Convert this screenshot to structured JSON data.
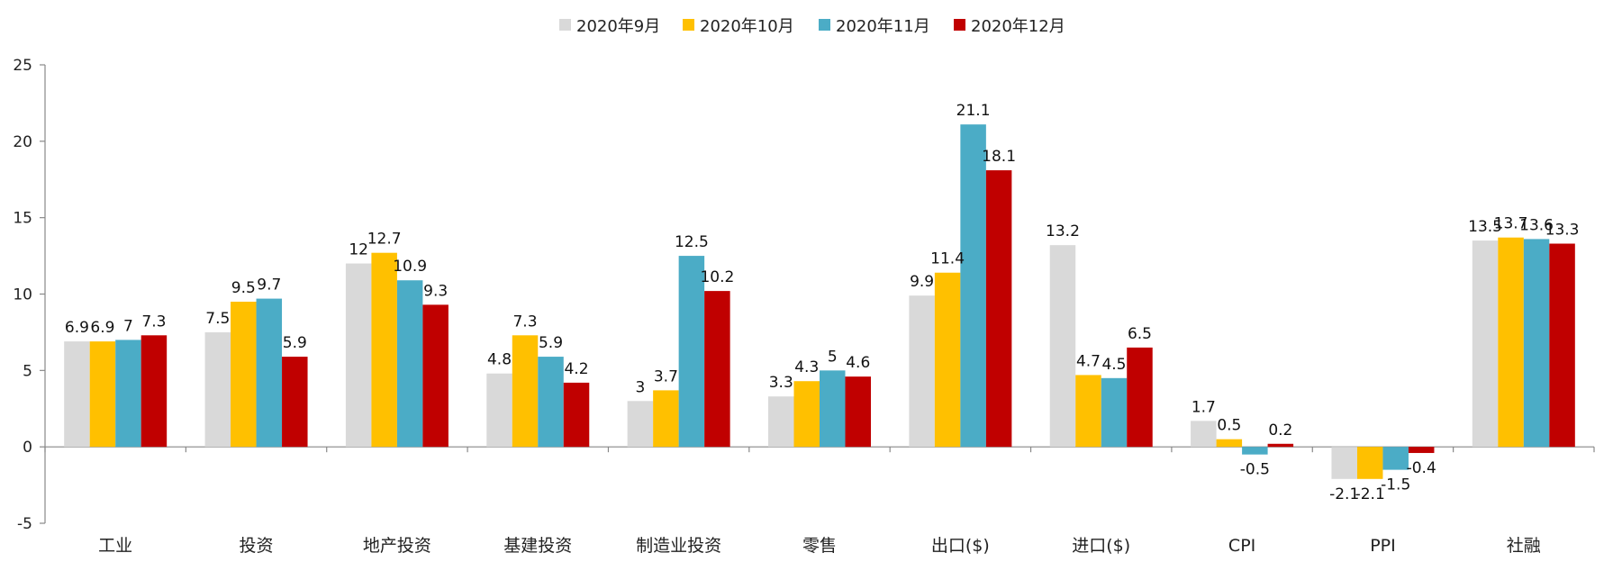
{
  "chart_data": {
    "type": "bar",
    "categories": [
      "工业",
      "投资",
      "地产投资",
      "基建投资",
      "制造业投资",
      "零售",
      "出口($)",
      "进口($)",
      "CPI",
      "PPI",
      "社融"
    ],
    "series": [
      {
        "name": "2020年9月",
        "color": "#d9d9d9",
        "values": [
          6.9,
          7.5,
          12,
          4.8,
          3,
          3.3,
          9.9,
          13.2,
          1.7,
          -2.1,
          13.5
        ]
      },
      {
        "name": "2020年10月",
        "color": "#ffc000",
        "values": [
          6.9,
          9.5,
          12.7,
          7.3,
          3.7,
          4.3,
          11.4,
          4.7,
          0.5,
          -2.1,
          13.7
        ]
      },
      {
        "name": "2020年11月",
        "color": "#4bacc6",
        "values": [
          7,
          9.7,
          10.9,
          5.9,
          12.5,
          5,
          21.1,
          4.5,
          -0.5,
          -1.5,
          13.6
        ]
      },
      {
        "name": "2020年12月",
        "color": "#c00000",
        "values": [
          7.3,
          5.9,
          9.3,
          4.2,
          10.2,
          4.6,
          18.1,
          6.5,
          0.2,
          -0.4,
          13.3
        ]
      }
    ],
    "y_ticks": [
      "25",
      "20",
      "15",
      "10",
      "5",
      "0",
      "-5"
    ],
    "ylim": [
      -5,
      25
    ],
    "grid": false,
    "legend_position": "top-center"
  }
}
